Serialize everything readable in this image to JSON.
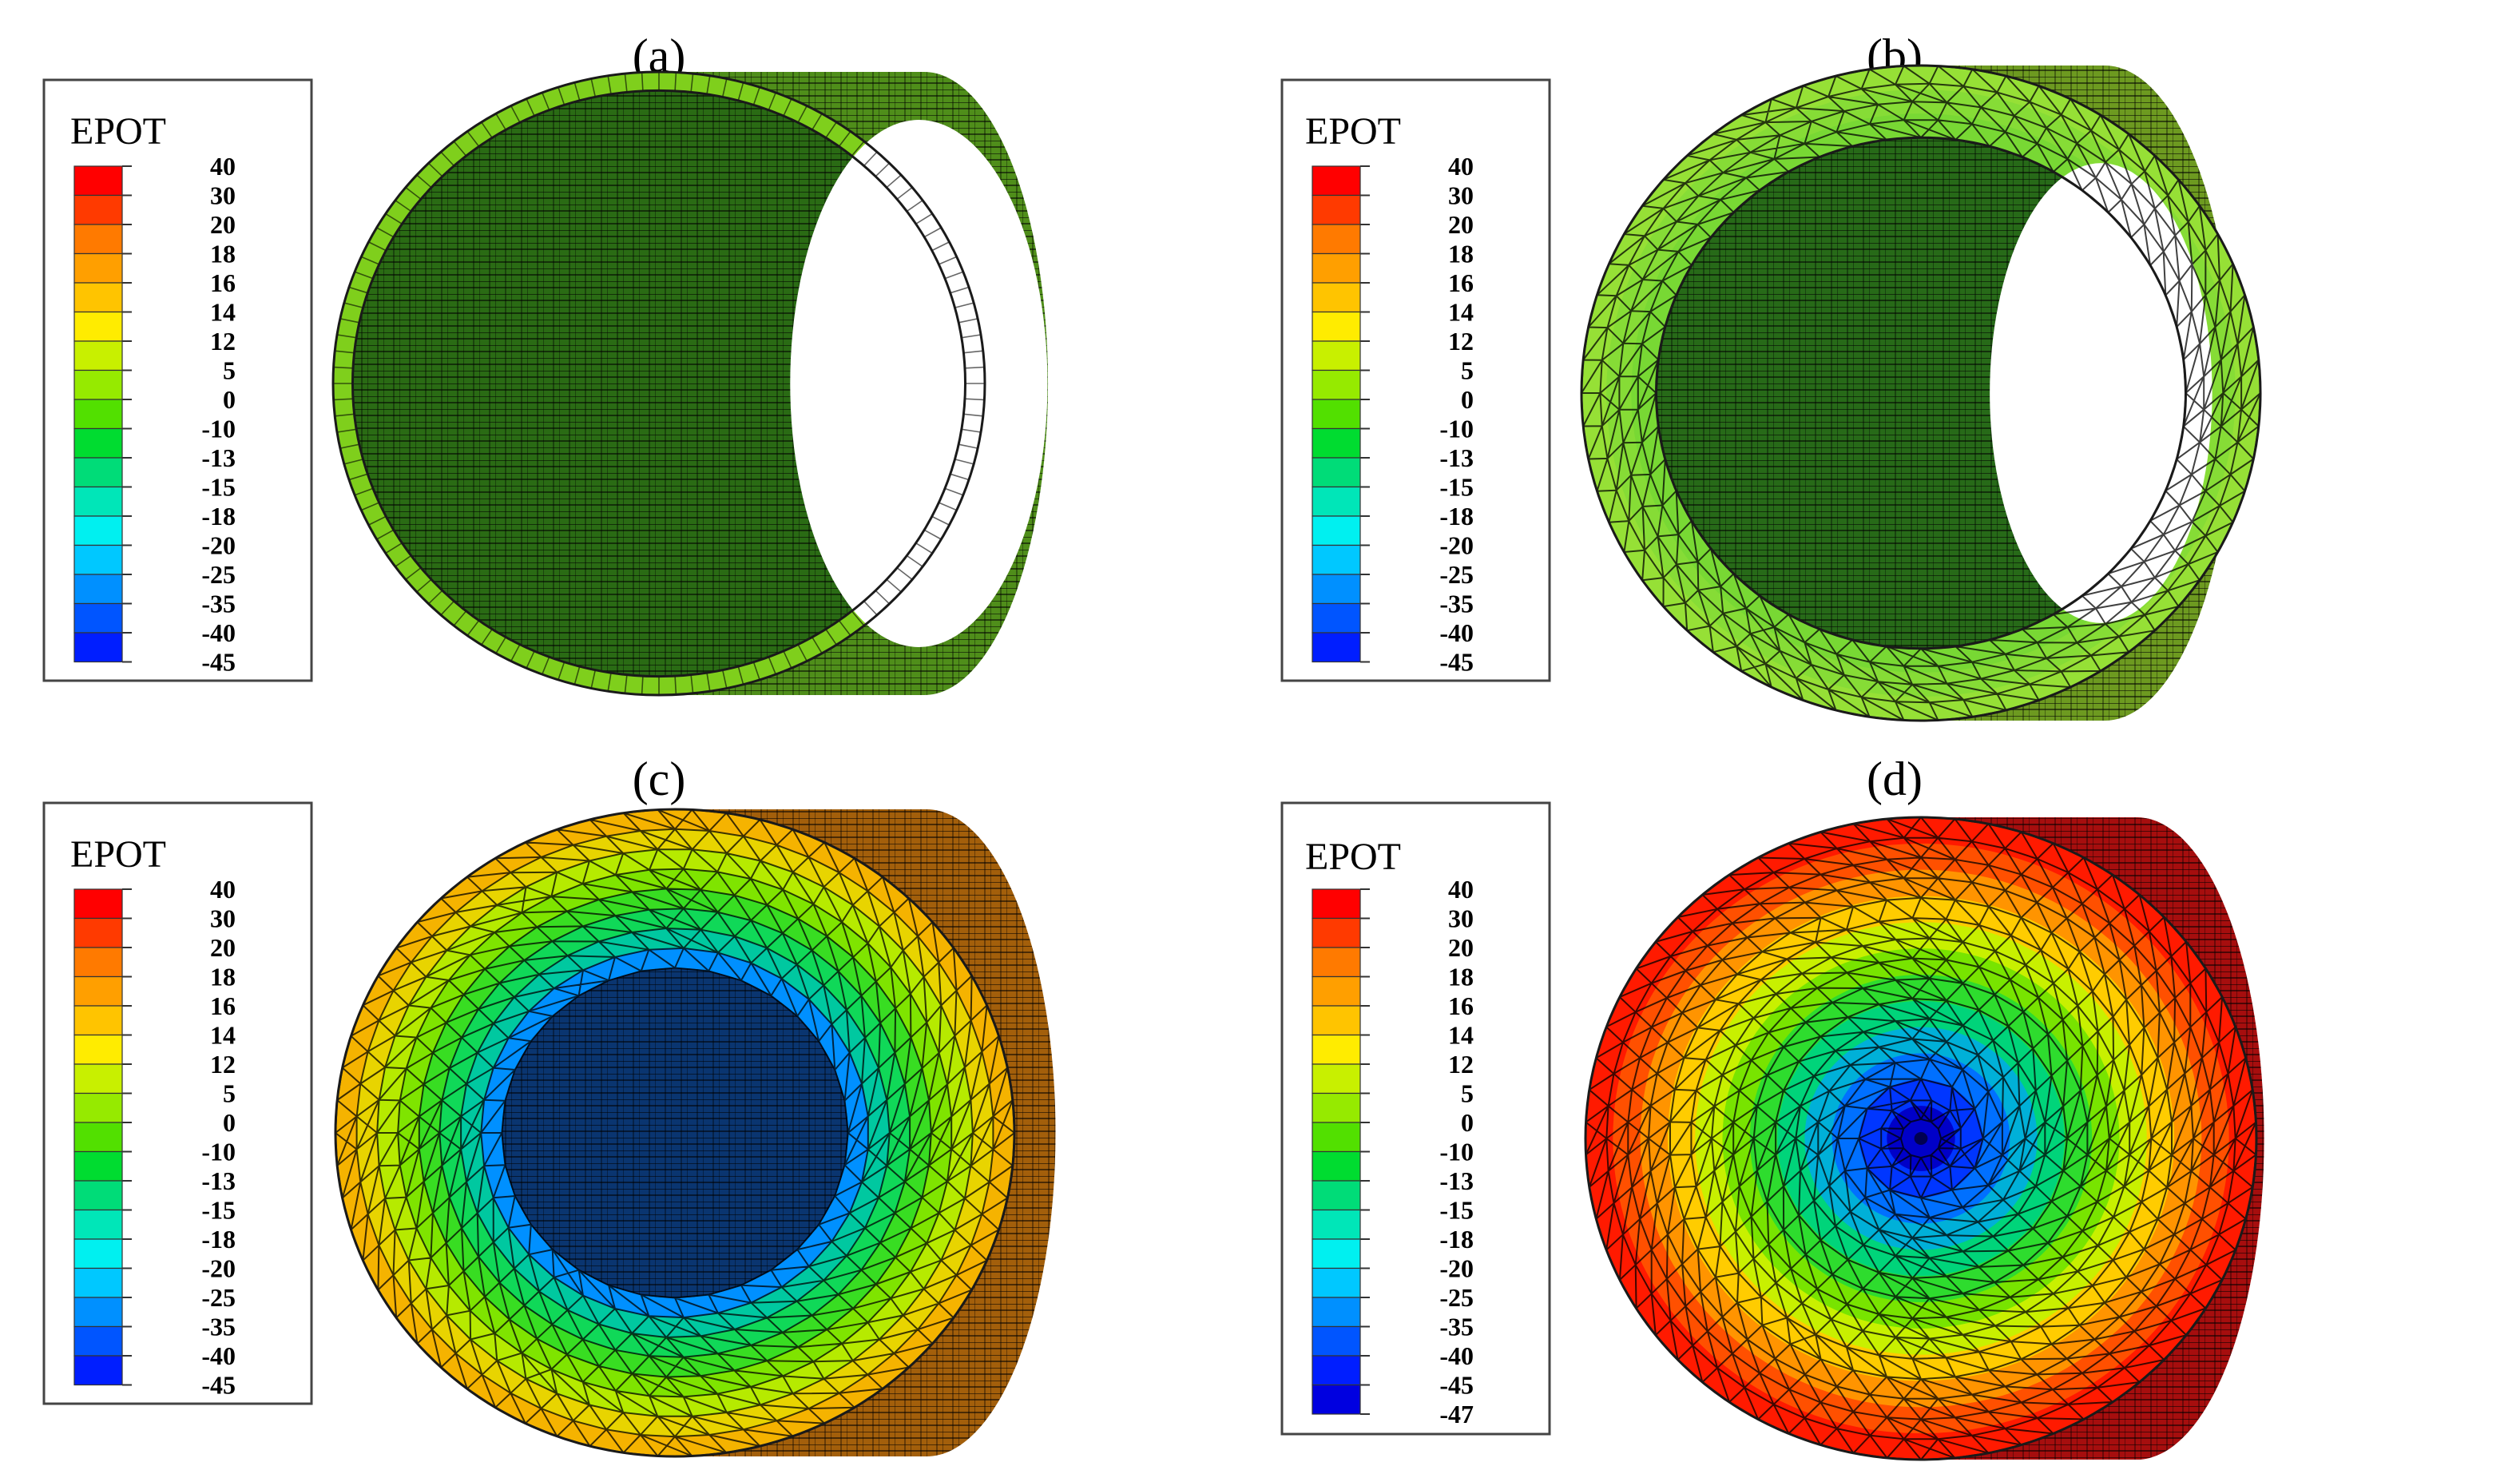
{
  "colorbar": {
    "title": "EPOT",
    "ticks": [
      "40",
      "30",
      "20",
      "18",
      "16",
      "14",
      "12",
      "5",
      "0",
      "-10",
      "-13",
      "-15",
      "-18",
      "-20",
      "-25",
      "-35",
      "-40",
      "-45"
    ],
    "ticks_d": [
      "40",
      "30",
      "20",
      "18",
      "16",
      "14",
      "12",
      "5",
      "0",
      "-10",
      "-13",
      "-15",
      "-18",
      "-20",
      "-25",
      "-35",
      "-40",
      "-45",
      "-47"
    ],
    "colors": [
      "#ff0000",
      "#ff3a00",
      "#ff7a00",
      "#ff9f00",
      "#ffc400",
      "#ffec00",
      "#c8f000",
      "#96ea00",
      "#52e000",
      "#00dc30",
      "#00dc78",
      "#00e6b8",
      "#00f0f0",
      "#00c8ff",
      "#0090ff",
      "#0055ff",
      "#001eff",
      "#0000e0"
    ]
  },
  "panels": [
    {
      "label": "(a)",
      "face_rings": [
        "#7fcf1c"
      ],
      "hole_color": "#ffffff",
      "inner_color": "#2a6b14",
      "barrel_color": "#4f8e1a",
      "has_hole": true
    },
    {
      "label": "(b)",
      "face_rings": [
        "#96e036",
        "#86dc36",
        "#78d834"
      ],
      "hole_color": "#ffffff",
      "inner_color": "#276a18",
      "barrel_color": "#6d9a20",
      "has_hole": true
    },
    {
      "label": "(c)",
      "face_rings": [
        "#f5b300",
        "#e8d400",
        "#b6ea00",
        "#7fe400",
        "#38dd22",
        "#10d858",
        "#00c8a0",
        "#0090ff"
      ],
      "inner_color": "#0a3570",
      "barrel_color": "#a35f0b",
      "has_hole": false
    },
    {
      "label": "(d)",
      "face_rings": [
        "#ff1a00",
        "#ff5000",
        "#ff9400",
        "#ffcc00",
        "#c8f000",
        "#78e400",
        "#2edc2e",
        "#00d47a",
        "#00b0d8",
        "#0070ff",
        "#0036ff",
        "#0000c8"
      ],
      "inner_color": "#000050",
      "barrel_color": "#a60e0e",
      "has_hole": false
    }
  ]
}
